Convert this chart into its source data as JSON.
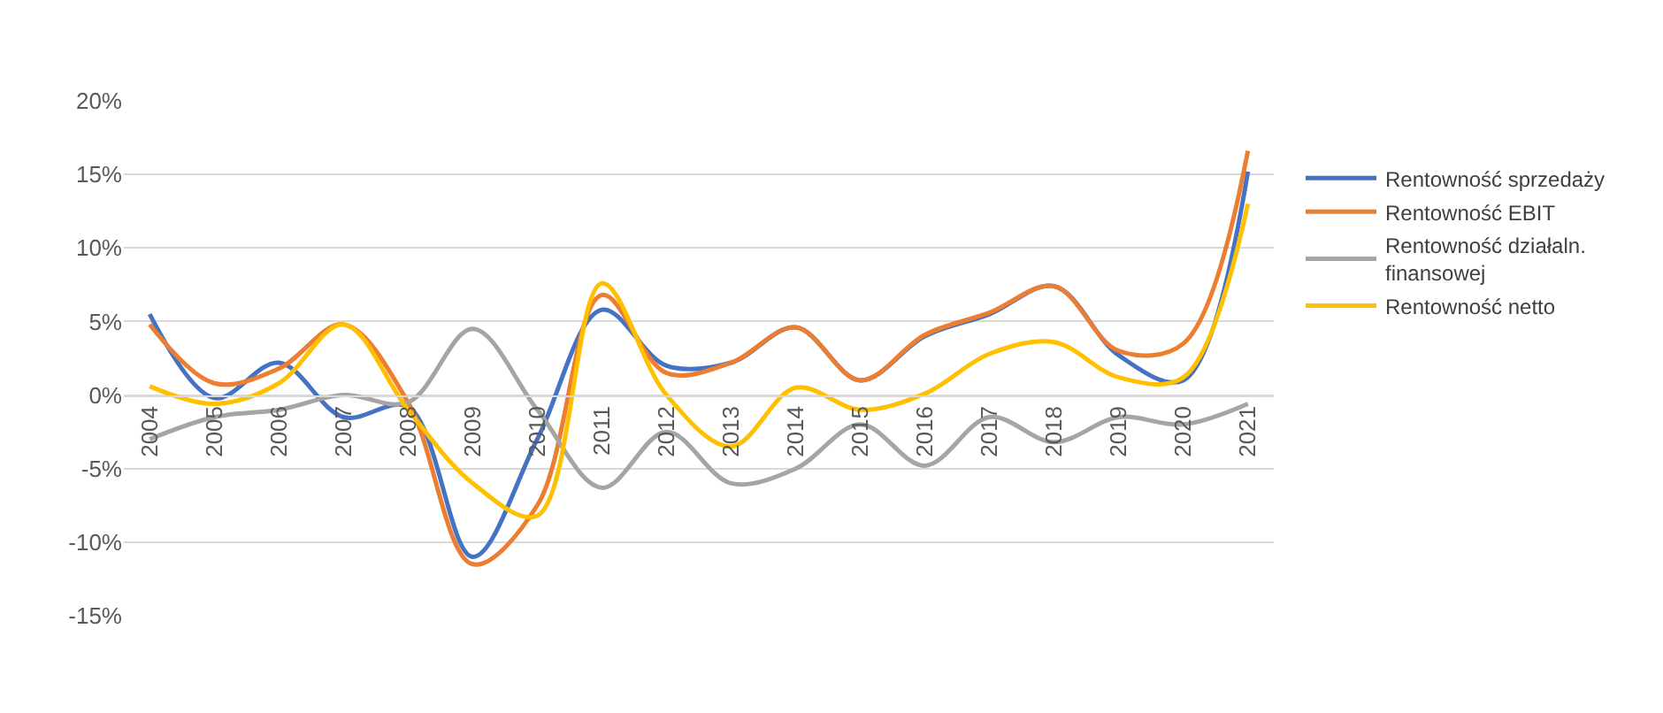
{
  "chart_data": {
    "type": "line",
    "categories": [
      "2004",
      "2005",
      "2006",
      "2007",
      "2008",
      "2009",
      "2010",
      "2011",
      "2012",
      "2013",
      "2014",
      "2015",
      "2016",
      "2017",
      "2018",
      "2019",
      "2020",
      "2021"
    ],
    "series": [
      {
        "name": "Rentowność sprzedaży",
        "color": "#4472c4",
        "values": [
          5.5,
          -0.2,
          2.2,
          -1.5,
          -0.8,
          -11,
          -3,
          5.8,
          2,
          2.2,
          4.6,
          1,
          4,
          5.5,
          7.4,
          2.7,
          1,
          15.2
        ]
      },
      {
        "name": "Rentowność EBIT",
        "color": "#ed7d31",
        "values": [
          4.8,
          0.8,
          1.8,
          4.8,
          -0.5,
          -11.5,
          -7.5,
          6.8,
          1.5,
          2.2,
          4.6,
          1,
          4.1,
          5.6,
          7.4,
          3,
          3.5,
          16.6
        ]
      },
      {
        "name": "Rentowność działaln. finansowej",
        "color": "#a5a5a5",
        "values": [
          -3,
          -1.5,
          -1,
          0,
          -0.5,
          4.5,
          -1,
          -6.3,
          -2.5,
          -6,
          -5,
          -2,
          -4.8,
          -1.5,
          -3.2,
          -1.5,
          -2,
          -0.6
        ]
      },
      {
        "name": "Rentowność netto",
        "color": "#ffc000",
        "values": [
          0.6,
          -0.6,
          0.8,
          4.8,
          -1,
          -6,
          -8.2,
          7.6,
          0,
          -3.5,
          0.5,
          -1,
          0.1,
          2.8,
          3.6,
          1.2,
          1.2,
          13
        ]
      }
    ],
    "ylim": [
      -15,
      20
    ],
    "yticks": [
      {
        "value": -15,
        "label": "-15%"
      },
      {
        "value": -10,
        "label": "-10%"
      },
      {
        "value": -5,
        "label": "-5%"
      },
      {
        "value": 0,
        "label": "0%"
      },
      {
        "value": 5,
        "label": "5%"
      },
      {
        "value": 10,
        "label": "10%"
      },
      {
        "value": 15,
        "label": "15%"
      },
      {
        "value": 20,
        "label": "20%"
      }
    ],
    "grid": "y",
    "legend": "right",
    "marker": "none",
    "line_style": "solid"
  }
}
